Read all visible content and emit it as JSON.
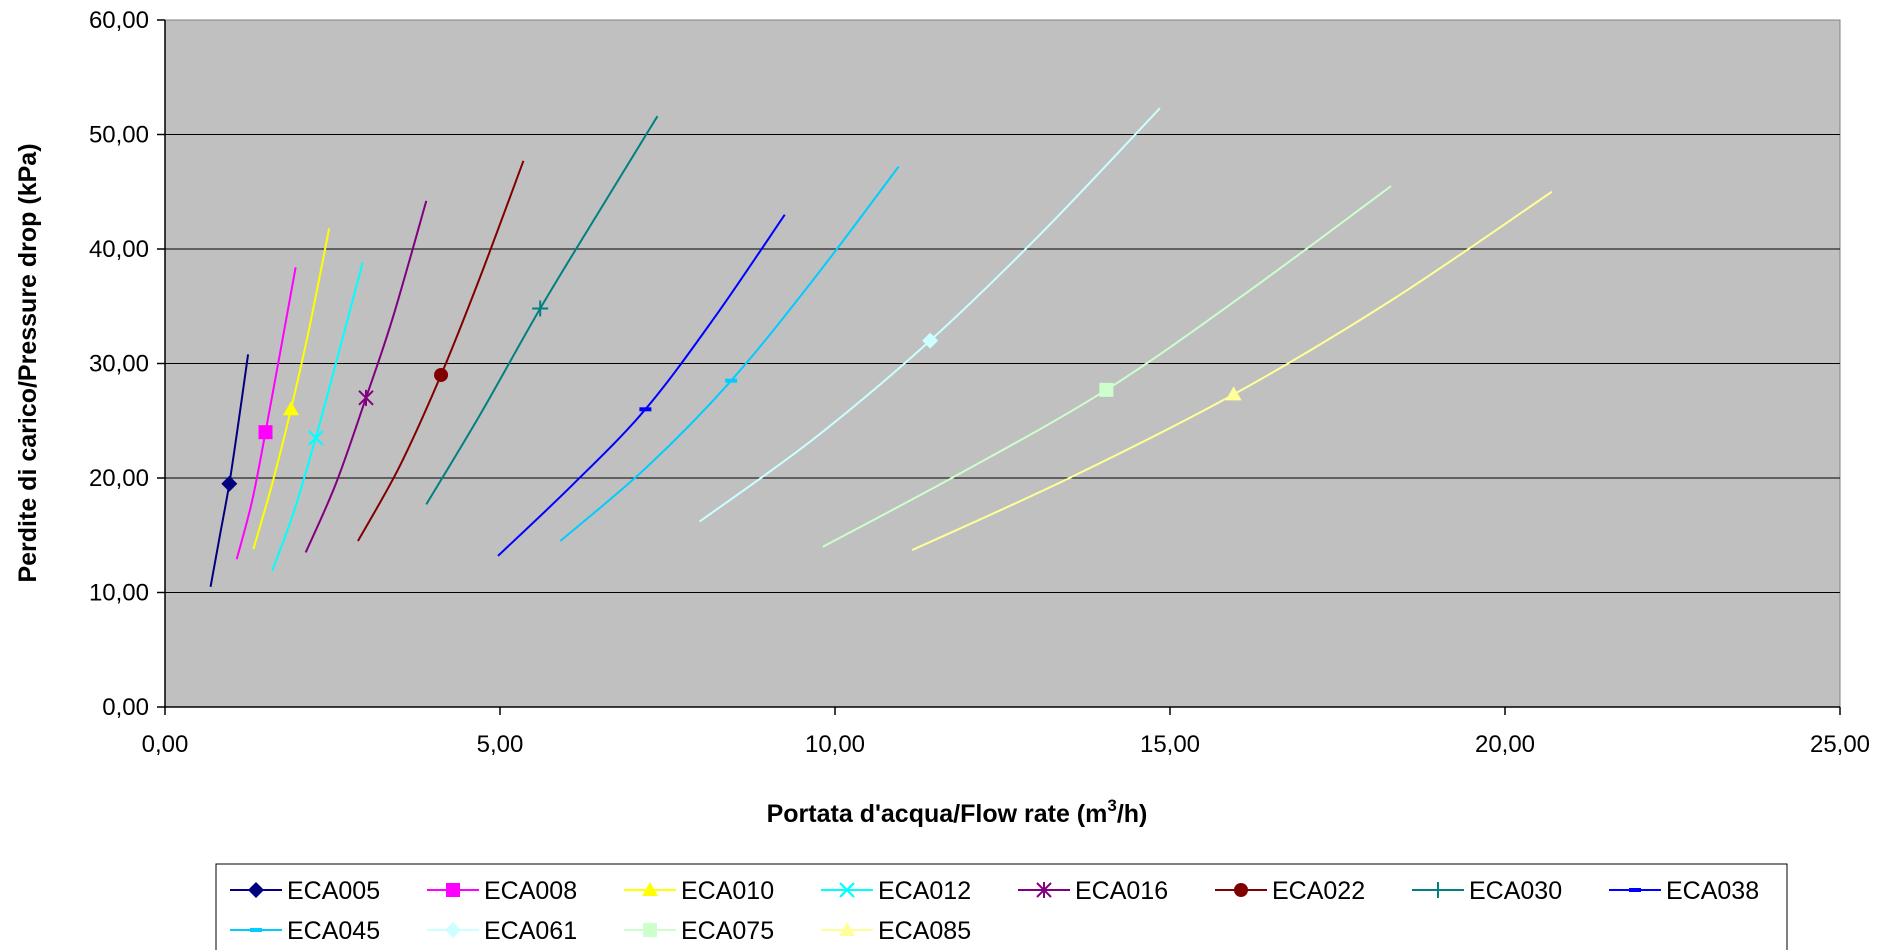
{
  "chart_data": {
    "type": "line",
    "title": "",
    "xlabel_main": "Portata d'acqua/Flow rate (m",
    "xlabel_sup": "3",
    "xlabel_tail": "/h)",
    "ylabel": "Perdite di carico/Pressure drop (kPa)",
    "xlim": [
      0,
      25
    ],
    "ylim": [
      0,
      60
    ],
    "x_ticks": [
      "0,00",
      "5,00",
      "10,00",
      "15,00",
      "20,00",
      "25,00"
    ],
    "y_ticks": [
      "0,00",
      "10,00",
      "20,00",
      "30,00",
      "40,00",
      "50,00",
      "60,00"
    ],
    "grid": "horizontal",
    "legend_position": "bottom",
    "colors": {
      "plot_bg": "#c0c0c0",
      "gridline": "#000000"
    },
    "series": [
      {
        "name": "ECA005",
        "color": "#000080",
        "marker": "diamond",
        "points": [
          [
            0.68,
            10.5
          ],
          [
            0.82,
            15
          ],
          [
            0.96,
            19.5
          ],
          [
            1.1,
            25
          ],
          [
            1.24,
            30.8
          ]
        ],
        "marker_at": [
          0.96,
          19.5
        ]
      },
      {
        "name": "ECA008",
        "color": "#ff00ff",
        "marker": "square",
        "points": [
          [
            1.07,
            12.9
          ],
          [
            1.3,
            18
          ],
          [
            1.5,
            24
          ],
          [
            1.72,
            31
          ],
          [
            1.95,
            38.4
          ]
        ],
        "marker_at": [
          1.5,
          24
        ]
      },
      {
        "name": "ECA010",
        "color": "#ffff00",
        "marker": "triangle",
        "points": [
          [
            1.32,
            13.8
          ],
          [
            1.6,
            19.5
          ],
          [
            1.88,
            26
          ],
          [
            2.15,
            33
          ],
          [
            2.45,
            41.8
          ]
        ],
        "marker_at": [
          1.88,
          26
        ]
      },
      {
        "name": "ECA012",
        "color": "#00ffff",
        "marker": "x",
        "points": [
          [
            1.6,
            11.9
          ],
          [
            1.92,
            17
          ],
          [
            2.25,
            23.5
          ],
          [
            2.55,
            30
          ],
          [
            2.95,
            38.8
          ]
        ],
        "marker_at": [
          2.25,
          23.5
        ]
      },
      {
        "name": "ECA016",
        "color": "#800080",
        "marker": "star",
        "points": [
          [
            2.1,
            13.5
          ],
          [
            2.55,
            19.5
          ],
          [
            3.0,
            27
          ],
          [
            3.4,
            34
          ],
          [
            3.9,
            44.2
          ]
        ],
        "marker_at": [
          3.0,
          27
        ]
      },
      {
        "name": "ECA022",
        "color": "#800000",
        "marker": "circle",
        "points": [
          [
            2.88,
            14.5
          ],
          [
            3.5,
            21
          ],
          [
            4.12,
            29
          ],
          [
            4.7,
            37.5
          ],
          [
            5.35,
            47.7
          ]
        ],
        "marker_at": [
          4.12,
          29
        ]
      },
      {
        "name": "ECA030",
        "color": "#008080",
        "marker": "plus",
        "points": [
          [
            3.9,
            17.7
          ],
          [
            4.7,
            25.5
          ],
          [
            5.6,
            34.8
          ],
          [
            6.45,
            43
          ],
          [
            7.35,
            51.6
          ]
        ],
        "marker_at": [
          5.6,
          34.8
        ]
      },
      {
        "name": "ECA038",
        "color": "#0000ff",
        "marker": "dash",
        "points": [
          [
            4.97,
            13.2
          ],
          [
            6.1,
            19.5
          ],
          [
            7.17,
            26
          ],
          [
            8.2,
            34
          ],
          [
            9.25,
            43
          ]
        ],
        "marker_at": [
          7.17,
          26
        ]
      },
      {
        "name": "ECA045",
        "color": "#00ccff",
        "marker": "dash",
        "points": [
          [
            5.9,
            14.5
          ],
          [
            7.2,
            21
          ],
          [
            8.45,
            28.5
          ],
          [
            9.7,
            37.5
          ],
          [
            10.95,
            47.2
          ]
        ],
        "marker_at": [
          8.45,
          28.5
        ]
      },
      {
        "name": "ECA061",
        "color": "#ccffff",
        "marker": "diamond",
        "points": [
          [
            7.98,
            16.2
          ],
          [
            9.7,
            23.5
          ],
          [
            11.42,
            32
          ],
          [
            13.1,
            41.5
          ],
          [
            14.85,
            52.3
          ]
        ],
        "marker_at": [
          11.42,
          32
        ]
      },
      {
        "name": "ECA075",
        "color": "#ccffcc",
        "marker": "square",
        "points": [
          [
            9.82,
            14
          ],
          [
            11.9,
            20.5
          ],
          [
            14.05,
            27.7
          ],
          [
            16.1,
            36
          ],
          [
            18.3,
            45.5
          ]
        ],
        "marker_at": [
          14.05,
          27.7
        ]
      },
      {
        "name": "ECA085",
        "color": "#ffff99",
        "marker": "triangle",
        "points": [
          [
            11.15,
            13.7
          ],
          [
            13.5,
            20
          ],
          [
            15.95,
            27.3
          ],
          [
            18.3,
            35.5
          ],
          [
            20.7,
            45
          ]
        ],
        "marker_at": [
          15.95,
          27.3
        ]
      }
    ]
  }
}
